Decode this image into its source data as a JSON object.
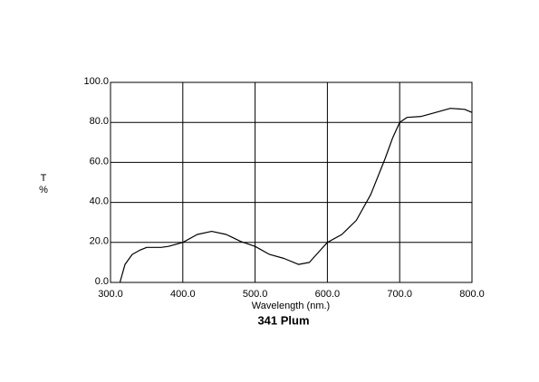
{
  "chart_data": {
    "type": "line",
    "title": "341 Plum",
    "xlabel": "Wavelength (nm.)",
    "ylabel": [
      "T",
      "%"
    ],
    "x": [
      313,
      320,
      330,
      340,
      350,
      370,
      380,
      400,
      420,
      440,
      460,
      480,
      500,
      520,
      540,
      560,
      575,
      590,
      600,
      620,
      640,
      660,
      680,
      690,
      700,
      710,
      730,
      750,
      770,
      790,
      800
    ],
    "series": [
      {
        "color": "#000000",
        "values": [
          0,
          9,
          14,
          16,
          17.5,
          17.5,
          18,
          20,
          24,
          25.5,
          24,
          20.5,
          18,
          14,
          12,
          9,
          10,
          16,
          20,
          24,
          31,
          44,
          62,
          72,
          80,
          82.5,
          83,
          85,
          87,
          86.5,
          85
        ]
      }
    ],
    "xlim": [
      300,
      800
    ],
    "ylim": [
      0,
      100
    ],
    "xticks": [
      {
        "value": 300,
        "label": "300.0"
      },
      {
        "value": 400,
        "label": "400.0"
      },
      {
        "value": 500,
        "label": "500.0"
      },
      {
        "value": 600,
        "label": "600.0"
      },
      {
        "value": 700,
        "label": "700.0"
      },
      {
        "value": 800,
        "label": "800.0"
      }
    ],
    "yticks": [
      {
        "value": 0,
        "label": "0.0"
      },
      {
        "value": 20,
        "label": "20.0"
      },
      {
        "value": 40,
        "label": "40.0"
      },
      {
        "value": 60,
        "label": "60.0"
      },
      {
        "value": 80,
        "label": "80.0"
      },
      {
        "value": 100,
        "label": "100.0"
      }
    ],
    "grid": true
  }
}
